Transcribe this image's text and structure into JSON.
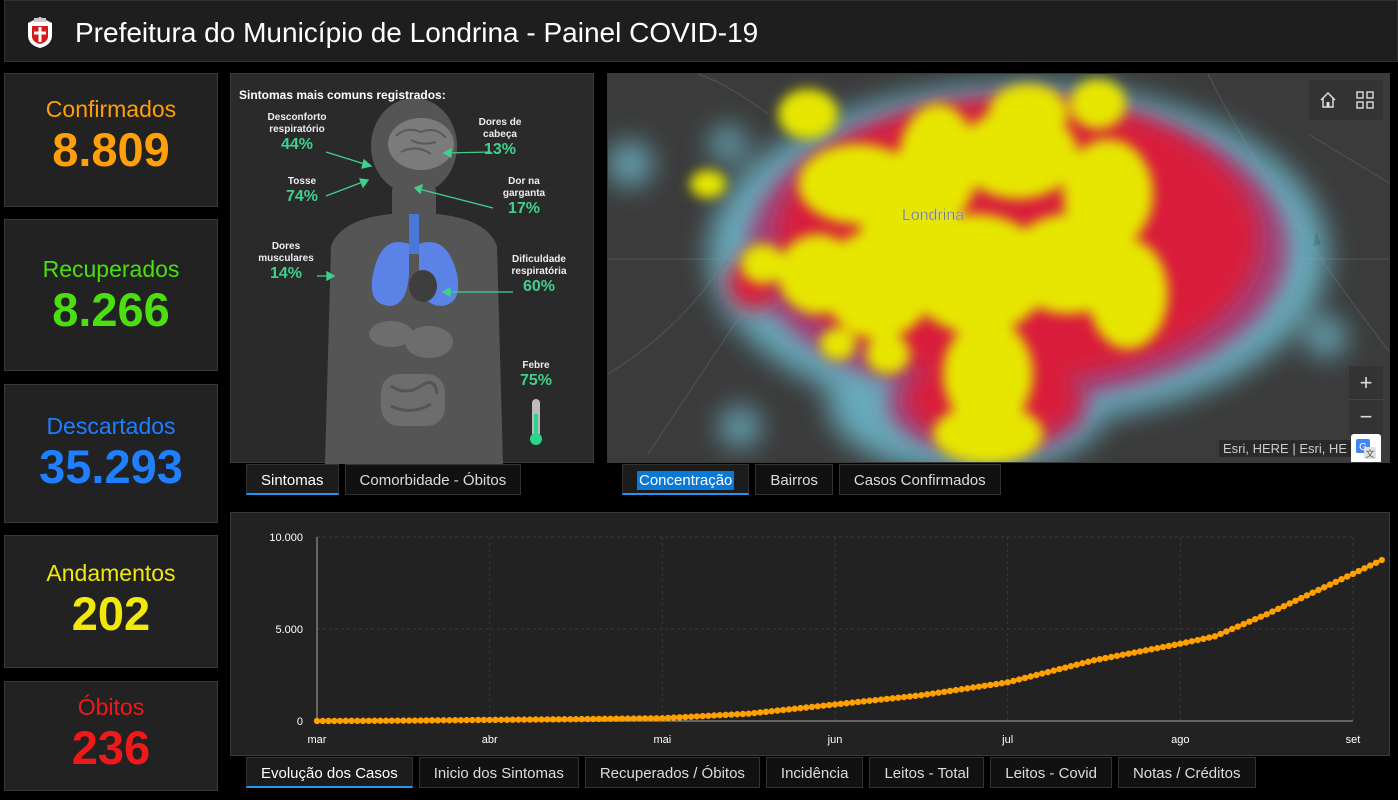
{
  "header": {
    "title": "Prefeitura do Município de Londrina - Painel COVID-19"
  },
  "stats": [
    {
      "label": "Confirmados",
      "value": "8.809",
      "color": "#ff9f0a"
    },
    {
      "label": "Recuperados",
      "value": "8.266",
      "color": "#4cdf10"
    },
    {
      "label": "Descartados",
      "value": "35.293",
      "color": "#1e7fff"
    },
    {
      "label": "Andamentos",
      "value": "202",
      "color": "#f2e80c"
    },
    {
      "label": "Óbitos",
      "value": "236",
      "color": "#f01818"
    }
  ],
  "symptoms": {
    "title": "Sintomas mais comuns registrados:",
    "items": [
      {
        "name": "Desconforto respiratório",
        "pct": "44%"
      },
      {
        "name": "Dores de cabeça",
        "pct": "13%"
      },
      {
        "name": "Tosse",
        "pct": "74%"
      },
      {
        "name": "Dor na garganta",
        "pct": "17%"
      },
      {
        "name": "Dores musculares",
        "pct": "14%"
      },
      {
        "name": "Dificuldade respiratória",
        "pct": "60%"
      },
      {
        "name": "Febre",
        "pct": "75%"
      }
    ]
  },
  "left_tabs": [
    {
      "label": "Sintomas",
      "active": true
    },
    {
      "label": "Comorbidade - Óbitos",
      "active": false
    }
  ],
  "map": {
    "city_label": "Londrina",
    "attribution": "Esri, HERE | Esri, HE",
    "home_icon": "home-icon",
    "basemap_icon": "qr-grid-icon",
    "zoom_in": "+",
    "zoom_out": "−"
  },
  "map_tabs": [
    {
      "label": "Concentração",
      "active": true
    },
    {
      "label": "Bairros",
      "active": false
    },
    {
      "label": "Casos Confirmados",
      "active": false
    }
  ],
  "chart_data": {
    "type": "line",
    "series_color": "#ffa000",
    "x_labels": [
      "mar",
      "abr",
      "mai",
      "jun",
      "jul",
      "ago",
      "set"
    ],
    "y_ticks": [
      "10.000",
      "5.000",
      "0"
    ],
    "ylim": [
      0,
      10000
    ],
    "x": [
      "mar",
      "mar 15",
      "abr",
      "abr 15",
      "mai",
      "mai 15",
      "jun",
      "jun 15",
      "jul",
      "jul 15",
      "ago",
      "ago 10",
      "ago 15",
      "set",
      "set 5"
    ],
    "values": [
      0,
      20,
      60,
      100,
      150,
      400,
      900,
      1400,
      2100,
      3300,
      4200,
      4600,
      5800,
      8000,
      8809
    ]
  },
  "bottom_tabs": [
    {
      "label": "Evolução dos Casos",
      "active": true
    },
    {
      "label": "Inicio dos Sintomas",
      "active": false
    },
    {
      "label": "Recuperados / Óbitos",
      "active": false
    },
    {
      "label": "Incidência",
      "active": false
    },
    {
      "label": "Leitos - Total",
      "active": false
    },
    {
      "label": "Leitos - Covid",
      "active": false
    },
    {
      "label": "Notas / Créditos",
      "active": false
    }
  ]
}
